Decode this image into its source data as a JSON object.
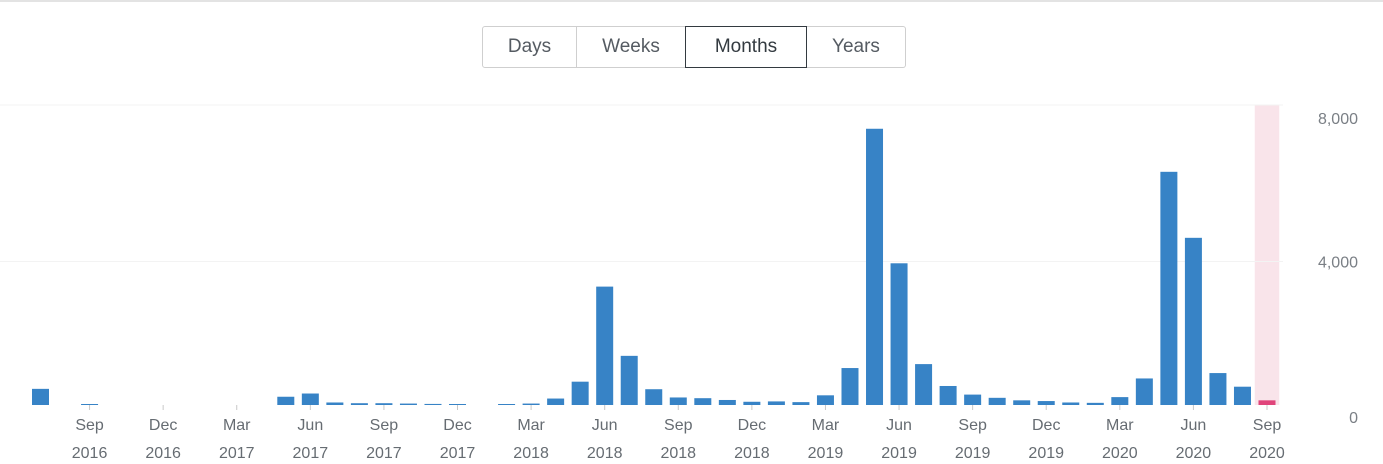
{
  "range_tabs": {
    "items": [
      {
        "label": "Days"
      },
      {
        "label": "Weeks"
      },
      {
        "label": "Months"
      },
      {
        "label": "Years"
      }
    ],
    "selected": "Months"
  },
  "colors": {
    "bar": "#3783c6",
    "partial_bar": "#e0457b",
    "partial_band": "#f9e4ea",
    "grid": "#f3f3f3"
  },
  "chart_data": {
    "type": "bar",
    "title": "",
    "xlabel": "",
    "ylabel": "",
    "ylim": [
      0,
      8000
    ],
    "y_ticks": [
      {
        "value": 0,
        "label": "0"
      },
      {
        "value": 4000,
        "label": "4,000"
      },
      {
        "value": 8000,
        "label": "8,000"
      }
    ],
    "grid": true,
    "y_axis_position": "right",
    "categories": [
      "2016-07",
      "2016-08",
      "2016-09",
      "2016-10",
      "2016-11",
      "2016-12",
      "2017-01",
      "2017-02",
      "2017-03",
      "2017-04",
      "2017-05",
      "2017-06",
      "2017-07",
      "2017-08",
      "2017-09",
      "2017-10",
      "2017-11",
      "2017-12",
      "2018-01",
      "2018-02",
      "2018-03",
      "2018-04",
      "2018-05",
      "2018-06",
      "2018-07",
      "2018-08",
      "2018-09",
      "2018-10",
      "2018-11",
      "2018-12",
      "2019-01",
      "2019-02",
      "2019-03",
      "2019-04",
      "2019-05",
      "2019-06",
      "2019-07",
      "2019-08",
      "2019-09",
      "2019-10",
      "2019-11",
      "2019-12",
      "2020-01",
      "2020-02",
      "2020-03",
      "2020-04",
      "2020-05",
      "2020-06",
      "2020-07",
      "2020-08",
      "2020-09"
    ],
    "values": [
      450,
      0,
      20,
      0,
      0,
      0,
      0,
      0,
      0,
      0,
      230,
      320,
      70,
      50,
      50,
      40,
      30,
      20,
      0,
      10,
      40,
      180,
      650,
      3300,
      1370,
      440,
      210,
      190,
      140,
      90,
      100,
      80,
      270,
      1030,
      7700,
      3950,
      1140,
      530,
      290,
      200,
      130,
      110,
      70,
      60,
      220,
      740,
      6500,
      4660,
      890,
      510,
      130
    ],
    "partial_category": "2020-09",
    "x_tick_labels": [
      {
        "category": "2016-09",
        "month": "Sep",
        "year": "2016"
      },
      {
        "category": "2016-12",
        "month": "Dec",
        "year": "2016"
      },
      {
        "category": "2017-03",
        "month": "Mar",
        "year": "2017"
      },
      {
        "category": "2017-06",
        "month": "Jun",
        "year": "2017"
      },
      {
        "category": "2017-09",
        "month": "Sep",
        "year": "2017"
      },
      {
        "category": "2017-12",
        "month": "Dec",
        "year": "2017"
      },
      {
        "category": "2018-03",
        "month": "Mar",
        "year": "2018"
      },
      {
        "category": "2018-06",
        "month": "Jun",
        "year": "2018"
      },
      {
        "category": "2018-09",
        "month": "Sep",
        "year": "2018"
      },
      {
        "category": "2018-12",
        "month": "Dec",
        "year": "2018"
      },
      {
        "category": "2019-03",
        "month": "Mar",
        "year": "2019"
      },
      {
        "category": "2019-06",
        "month": "Jun",
        "year": "2019"
      },
      {
        "category": "2019-09",
        "month": "Sep",
        "year": "2019"
      },
      {
        "category": "2019-12",
        "month": "Dec",
        "year": "2019"
      },
      {
        "category": "2020-03",
        "month": "Mar",
        "year": "2020"
      },
      {
        "category": "2020-06",
        "month": "Jun",
        "year": "2020"
      },
      {
        "category": "2020-09",
        "month": "Sep",
        "year": "2020"
      }
    ]
  }
}
